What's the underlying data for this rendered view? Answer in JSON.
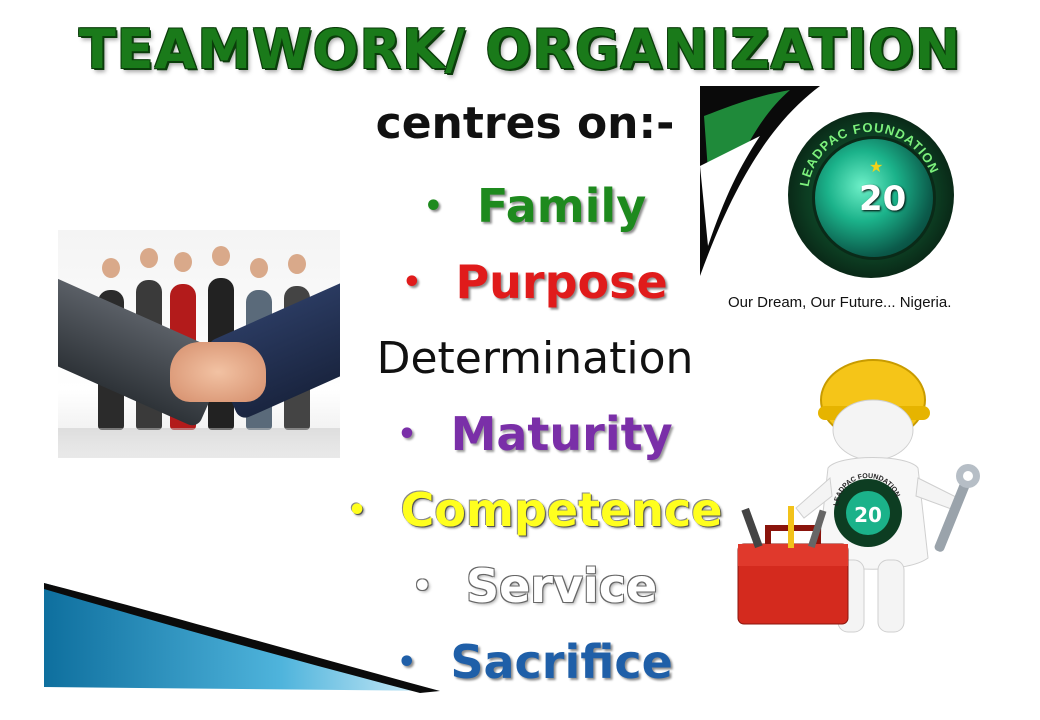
{
  "slide": {
    "title": "TEAMWORK/ ORGANIZATION",
    "subtitle": "centres on:-",
    "items": [
      {
        "bullet": "•",
        "label": "Family",
        "color": "#1e8a1e"
      },
      {
        "bullet": "•",
        "label": "Purpose",
        "color": "#e01b1b"
      },
      {
        "bullet": "",
        "label": "Determination",
        "color": "#111111"
      },
      {
        "bullet": "•",
        "label": "Maturity",
        "color": "#7a2fa8"
      },
      {
        "bullet": "•",
        "label": "Competence",
        "color": "#ffff1e"
      },
      {
        "bullet": "•",
        "label": "Service",
        "color": "#ffffff"
      },
      {
        "bullet": "•",
        "label": "Sacrifice",
        "color": "#1f5fa8"
      }
    ]
  },
  "logo": {
    "ring_text": "LEADPAC FOUNDATION",
    "number": "20",
    "tagline": "Our Dream, Our Future... Nigeria."
  },
  "worker": {
    "shirt_text": "LEADPAC FOUNDATION",
    "number": "20"
  },
  "icons": [
    "handshake-image",
    "leadpac-logo",
    "worker-mascot",
    "toolbox-icon",
    "wrench-icon",
    "hard-hat-icon"
  ]
}
